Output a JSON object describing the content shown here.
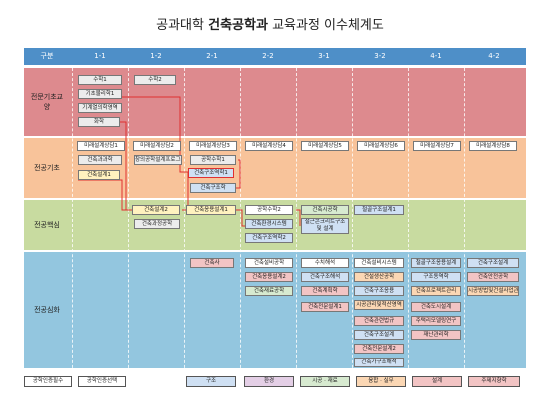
{
  "title": {
    "pre": "공과대학 ",
    "bold": "건축공학과",
    "post": " 교육과정 이수체계도"
  },
  "header": {
    "first": "구분",
    "semesters": [
      "1-1",
      "1-2",
      "2-1",
      "2-2",
      "3-1",
      "3-2",
      "4-1",
      "4-2"
    ]
  },
  "bands": [
    {
      "label": "전문기초교양",
      "color": "#dd8a8e"
    },
    {
      "label": "전공기초",
      "color": "#f8c39a"
    },
    {
      "label": "전공핵심",
      "color": "#c8dba0"
    },
    {
      "label": "전공심화",
      "color": "#93c6df"
    }
  ],
  "courses": {
    "c1": "수학1",
    "c2": "수학2",
    "c3": "기초물리학1",
    "c4": "기계열의학영역",
    "c5": "화학",
    "c6": "미래설계상담1",
    "c7": "미래설계상담2",
    "c8": "미래설계상담3",
    "c9": "미래설계상담4",
    "c10": "미래설계상담5",
    "c11": "미래설계상담6",
    "c12": "미래설계상담7",
    "c13": "미래설계상담8",
    "c14": "건축과과학",
    "c15": "창의공학설계프로그래밍1",
    "c16": "공학수학1",
    "c17": "건축설계1",
    "c18": "건축구조역학1",
    "c19": "건축구조학",
    "c20": "건축설계2",
    "c21": "건축과정공학",
    "c22": "건축응용설계1",
    "c23": "공학수학2",
    "c24": "건축환경시스템",
    "c25": "건축구조역학2",
    "c26": "건축시공학",
    "c27": "철근콘크리트구조 및 설계",
    "c28": "철골구조설계1",
    "c29": "건축사",
    "c30": "건축설비공학",
    "c31": "건축응용설계2",
    "c32": "건축재료공학",
    "c33": "수치해석",
    "c34": "건축구조해석",
    "c35": "건축계획학",
    "c36": "건축전문설계1",
    "c37": "건축설비시스템",
    "c38": "건설생산공학",
    "c39": "건축구조응용",
    "c40": "시공관리및적산영역",
    "c41": "건축관련법규",
    "c42": "건축구조설계",
    "c43": "건축전문설계2",
    "c44": "건축가구조해석",
    "c45": "철골구조응용설계",
    "c46": "구조동역학",
    "c47": "건축프로젝트관리",
    "c48": "건축도시설계",
    "c49": "주택리모델링연구",
    "c50": "재난관리학",
    "c51": "건축구조설계",
    "c52": "건축안전공학",
    "c53": "시공방법및건설사업관리"
  },
  "legend": [
    "공학인증필수",
    "공학인증선택",
    "구조",
    "환경",
    "시공 · 재료",
    "융합 · 실무",
    "설계",
    "주제지향학"
  ],
  "legend_colors": [
    "#ffffff",
    "#ffffff",
    "#cfe0f3",
    "#e4cfe6",
    "#d7ead0",
    "#fbd7b4",
    "#f2c4c4",
    "#f2c4c4"
  ]
}
